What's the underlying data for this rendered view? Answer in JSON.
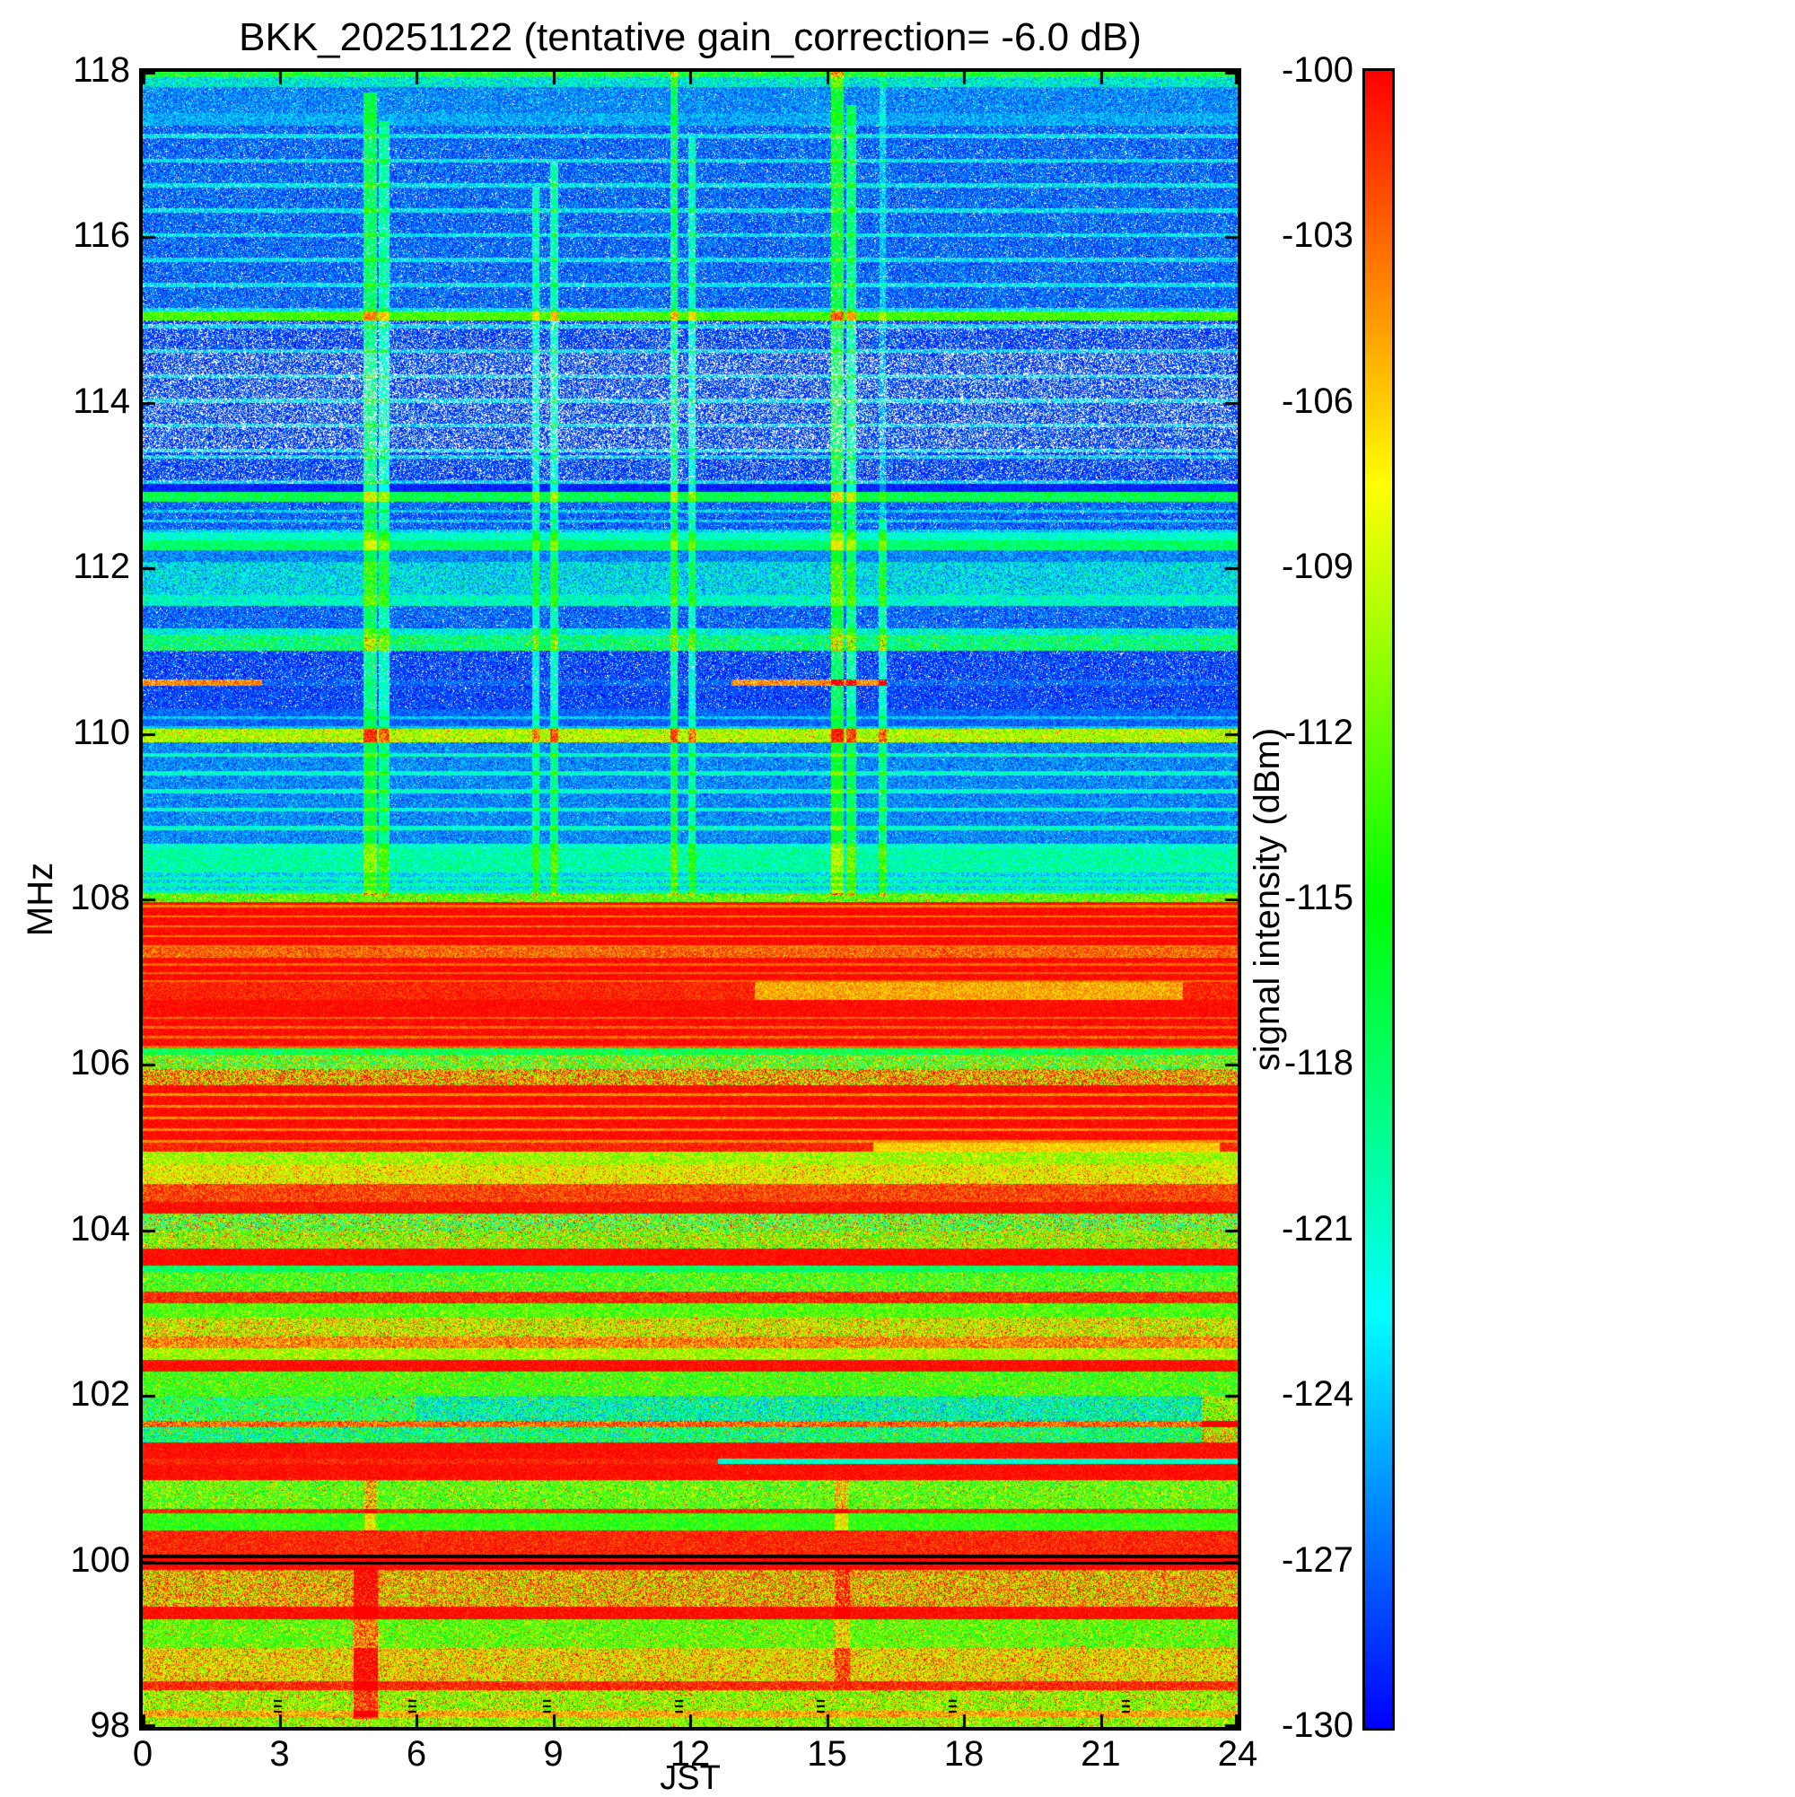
{
  "chart_data": {
    "type": "heatmap",
    "title": "BKK_20251122 (tentative gain_correction= -6.0 dB)",
    "xlabel": "JST",
    "ylabel": "MHz",
    "colorbar_label": "signal intensity (dBm)",
    "x_range": [
      0,
      24
    ],
    "x_ticks": [
      0,
      3,
      6,
      9,
      12,
      15,
      18,
      21,
      24
    ],
    "y_range": [
      98,
      118
    ],
    "y_ticks": [
      98,
      100,
      102,
      104,
      106,
      108,
      110,
      112,
      114,
      116,
      118
    ],
    "colorbar_range": [
      -130,
      -100
    ],
    "colorbar_ticks": [
      -100,
      -103,
      -106,
      -109,
      -112,
      -115,
      -118,
      -121,
      -124,
      -127,
      -130
    ],
    "colormap_stops": [
      "#0000ff",
      "#00ffff",
      "#00ff00",
      "#ffff00",
      "#ff0000"
    ],
    "legend_position": "right-colorbar",
    "grid": false,
    "bands": [
      {
        "f0": 98.0,
        "f1": 98.12,
        "base": -111,
        "noise": 5,
        "spike_p": 0.12,
        "spike_d": 9
      },
      {
        "f0": 98.12,
        "f1": 98.2,
        "base": -105,
        "noise": 4
      },
      {
        "f0": 98.2,
        "f1": 98.45,
        "base": -111,
        "noise": 5,
        "spike_p": 0.15,
        "spike_d": 9
      },
      {
        "f0": 98.45,
        "f1": 98.55,
        "base": -101,
        "noise": 3
      },
      {
        "f0": 98.55,
        "f1": 98.95,
        "base": -108,
        "noise": 5,
        "spike_p": 0.2,
        "spike_d": 7
      },
      {
        "f0": 98.95,
        "f1": 99.3,
        "base": -113,
        "noise": 5,
        "spike_p": 0.12,
        "spike_d": 8
      },
      {
        "f0": 99.3,
        "f1": 99.45,
        "base": -100,
        "noise": 2
      },
      {
        "f0": 99.45,
        "f1": 99.9,
        "base": -107,
        "noise": 7,
        "spike_p": 0.2,
        "spike_d": 7
      },
      {
        "f0": 99.9,
        "f1": 99.96,
        "base": -100,
        "noise": 1.5
      },
      {
        "f0": 99.96,
        "f1": 100.0,
        "color": "black"
      },
      {
        "f0": 100.0,
        "f1": 100.04,
        "base": -100,
        "noise": 1
      },
      {
        "f0": 100.04,
        "f1": 100.08,
        "color": "black"
      },
      {
        "f0": 100.08,
        "f1": 100.38,
        "base": -101,
        "noise": 2.5
      },
      {
        "f0": 100.38,
        "f1": 100.58,
        "base": -114,
        "noise": 4
      },
      {
        "f0": 100.58,
        "f1": 100.64,
        "base": -101,
        "noise": 2
      },
      {
        "f0": 100.64,
        "f1": 100.98,
        "base": -113,
        "noise": 6,
        "spike_p": 0.1,
        "spike_d": 8
      },
      {
        "f0": 100.98,
        "f1": 101.18,
        "base": -100,
        "noise": 2
      },
      {
        "f0": 101.18,
        "f1": 101.24,
        "base": -101,
        "noise": 2,
        "segments": [
          {
            "t0": 12.6,
            "t1": 24,
            "base": -121,
            "noise": 3
          }
        ]
      },
      {
        "f0": 101.24,
        "f1": 101.44,
        "base": -100,
        "noise": 2
      },
      {
        "f0": 101.44,
        "f1": 101.62,
        "base": -119,
        "noise": 7,
        "spike_p": 0.15,
        "spike_d": 10
      },
      {
        "f0": 101.62,
        "f1": 101.7,
        "base": -103,
        "noise": 4
      },
      {
        "f0": 101.7,
        "f1": 102.0,
        "base": -121,
        "noise": 6,
        "spike_p": 0.1,
        "spike_d": 12,
        "segments": [
          {
            "t0": 0,
            "t1": 6,
            "base": -117,
            "noise": 7
          }
        ]
      },
      {
        "f0": 102.0,
        "f1": 102.3,
        "base": -114,
        "noise": 5,
        "spike_p": 0.1,
        "spike_d": 8
      },
      {
        "f0": 102.3,
        "f1": 102.44,
        "base": -100,
        "noise": 2
      },
      {
        "f0": 102.44,
        "f1": 102.58,
        "base": -110,
        "noise": 5
      },
      {
        "f0": 102.58,
        "f1": 102.72,
        "base": -104,
        "noise": 4
      },
      {
        "f0": 102.72,
        "f1": 102.95,
        "base": -109,
        "noise": 6,
        "spike_p": 0.15,
        "spike_d": 7
      },
      {
        "f0": 102.95,
        "f1": 103.12,
        "base": -113,
        "noise": 5
      },
      {
        "f0": 103.12,
        "f1": 103.26,
        "base": -101,
        "noise": 3
      },
      {
        "f0": 103.26,
        "f1": 103.5,
        "base": -114,
        "noise": 6,
        "spike_p": 0.1,
        "spike_d": 8
      },
      {
        "f0": 103.5,
        "f1": 103.58,
        "base": -118,
        "noise": 4
      },
      {
        "f0": 103.58,
        "f1": 103.78,
        "base": -100,
        "noise": 2
      },
      {
        "f0": 103.78,
        "f1": 104.0,
        "base": -111,
        "noise": 8,
        "spike_p": 0.1,
        "spike_d": 8
      },
      {
        "f0": 104.0,
        "f1": 104.2,
        "base": -114,
        "noise": 10,
        "spike_p": 0.15,
        "spike_d": 12
      },
      {
        "f0": 104.2,
        "f1": 104.34,
        "base": -100,
        "noise": 2
      },
      {
        "f0": 104.34,
        "f1": 104.56,
        "base": -102,
        "noise": 3
      },
      {
        "f0": 104.56,
        "f1": 104.8,
        "base": -108,
        "noise": 4,
        "spike_p": 0.1,
        "spike_d": 6
      },
      {
        "f0": 104.8,
        "f1": 104.95,
        "base": -110,
        "noise": 5
      },
      {
        "f0": 104.95,
        "f1": 105.06,
        "base": -101,
        "noise": 2,
        "segments": [
          {
            "t0": 16.0,
            "t1": 23.6,
            "base": -106,
            "noise": 2
          }
        ]
      },
      {
        "f0": 105.06,
        "f1": 105.75,
        "base": -100,
        "noise": 1.8,
        "stripes": {
          "period": 0.14,
          "width": 0.035,
          "delta": -4
        }
      },
      {
        "f0": 105.75,
        "f1": 105.95,
        "base": -106,
        "noise": 8,
        "spike_p": 0.1,
        "spike_d": 8
      },
      {
        "f0": 105.95,
        "f1": 106.12,
        "base": -112,
        "noise": 10
      },
      {
        "f0": 106.12,
        "f1": 106.2,
        "base": -117,
        "noise": 5
      },
      {
        "f0": 106.2,
        "f1": 106.58,
        "base": -100,
        "noise": 2,
        "stripes": {
          "period": 0.12,
          "width": 0.03,
          "delta": -3
        }
      },
      {
        "f0": 106.58,
        "f1": 106.78,
        "base": -100,
        "noise": 1.8
      },
      {
        "f0": 106.78,
        "f1": 107.0,
        "base": -101,
        "noise": 2,
        "segments": [
          {
            "t0": 13.4,
            "t1": 22.8,
            "base": -105,
            "noise": 2.5
          }
        ]
      },
      {
        "f0": 107.0,
        "f1": 107.3,
        "base": -100,
        "noise": 1.6,
        "stripes": {
          "period": 0.1,
          "width": 0.025,
          "delta": -3
        }
      },
      {
        "f0": 107.3,
        "f1": 107.42,
        "base": -103,
        "noise": 3
      },
      {
        "f0": 107.42,
        "f1": 107.97,
        "base": -100,
        "noise": 1.6,
        "stripes": {
          "period": 0.12,
          "width": 0.03,
          "delta": -3.5
        }
      },
      {
        "f0": 107.97,
        "f1": 108.08,
        "base": -113,
        "noise": 5,
        "spike_p": 0.1,
        "spike_d": 8
      },
      {
        "f0": 108.08,
        "f1": 108.32,
        "base": -123,
        "noise": 4,
        "stripes": {
          "period": 0.08,
          "width": 0.03,
          "delta": 3
        }
      },
      {
        "f0": 108.32,
        "f1": 108.62,
        "base": -120,
        "noise": 4
      },
      {
        "f0": 108.62,
        "f1": 109.9,
        "base": -126,
        "noise": 3,
        "white_p": 0.01,
        "stripes": {
          "period": 0.22,
          "width": 0.05,
          "delta": 5
        }
      },
      {
        "f0": 109.9,
        "f1": 110.06,
        "base": -110,
        "noise": 4,
        "spike_p": 0.08,
        "spike_d": 6
      },
      {
        "f0": 110.06,
        "f1": 110.3,
        "base": -127,
        "noise": 2.5,
        "stripes": {
          "period": 0.12,
          "width": 0.03,
          "delta": 3
        }
      },
      {
        "f0": 110.3,
        "f1": 110.58,
        "base": -128,
        "noise": 2.5,
        "white_p": 0.06
      },
      {
        "f0": 110.58,
        "f1": 110.66,
        "base": -127,
        "noise": 2.5,
        "white_p": 0.05,
        "segments": [
          {
            "t0": 0,
            "t1": 2.6,
            "base": -104,
            "noise": 3
          },
          {
            "t0": 12.9,
            "t1": 16.3,
            "base": -104,
            "noise": 3
          }
        ]
      },
      {
        "f0": 110.66,
        "f1": 111.0,
        "base": -128,
        "noise": 3,
        "white_p": 0.08
      },
      {
        "f0": 111.0,
        "f1": 111.2,
        "base": -119,
        "noise": 6,
        "spike_p": 0.08,
        "spike_d": 8
      },
      {
        "f0": 111.2,
        "f1": 111.28,
        "base": -122,
        "noise": 4
      },
      {
        "f0": 111.28,
        "f1": 111.55,
        "base": -127,
        "noise": 3,
        "white_p": 0.05
      },
      {
        "f0": 111.55,
        "f1": 111.68,
        "base": -121,
        "noise": 4
      },
      {
        "f0": 111.68,
        "f1": 112.08,
        "base": -123,
        "noise": 5
      },
      {
        "f0": 112.08,
        "f1": 112.22,
        "base": -126,
        "noise": 3
      },
      {
        "f0": 112.22,
        "f1": 112.34,
        "base": -118,
        "noise": 3
      },
      {
        "f0": 112.34,
        "f1": 112.44,
        "base": -121,
        "noise": 3
      },
      {
        "f0": 112.44,
        "f1": 112.8,
        "base": -127,
        "noise": 3,
        "white_p": 0.04,
        "stripes": {
          "period": 0.12,
          "width": 0.03,
          "delta": 3
        }
      },
      {
        "f0": 112.8,
        "f1": 112.92,
        "base": -117,
        "noise": 4
      },
      {
        "f0": 112.92,
        "f1": 113.02,
        "base": -129,
        "noise": 1.5
      },
      {
        "f0": 113.02,
        "f1": 113.4,
        "base": -128,
        "noise": 2.5,
        "white_p": 0.18,
        "stripes": {
          "period": 0.3,
          "width": 0.05,
          "delta": 4
        }
      },
      {
        "f0": 113.4,
        "f1": 114.6,
        "base": -128,
        "noise": 2.5,
        "white_p": 0.32,
        "stripes": {
          "period": 0.3,
          "width": 0.05,
          "delta": 4
        }
      },
      {
        "f0": 114.6,
        "f1": 115.0,
        "base": -128,
        "noise": 2.5,
        "white_p": 0.2,
        "stripes": {
          "period": 0.3,
          "width": 0.05,
          "delta": 4
        }
      },
      {
        "f0": 115.0,
        "f1": 115.1,
        "base": -113,
        "noise": 3
      },
      {
        "f0": 115.1,
        "f1": 117.35,
        "base": -127,
        "noise": 3,
        "white_p": 0.07,
        "stripes": {
          "period": 0.3,
          "width": 0.05,
          "delta": 4
        }
      },
      {
        "f0": 117.35,
        "f1": 117.5,
        "base": -125,
        "noise": 3
      },
      {
        "f0": 117.5,
        "f1": 117.82,
        "base": -126,
        "noise": 3,
        "white_p": 0.03
      },
      {
        "f0": 117.82,
        "f1": 117.93,
        "base": -122,
        "noise": 5
      },
      {
        "f0": 117.93,
        "f1": 118.0,
        "base": -116,
        "noise": 5,
        "spike_p": 0.1,
        "spike_d": 5
      }
    ],
    "events": [
      {
        "t0": 4.82,
        "t1": 5.12,
        "f0": 108.05,
        "f1": 117.75,
        "delta": 9
      },
      {
        "t0": 5.16,
        "t1": 5.4,
        "f0": 108.05,
        "f1": 117.4,
        "delta": 7
      },
      {
        "t0": 8.52,
        "t1": 8.68,
        "f0": 108.05,
        "f1": 116.6,
        "delta": 6
      },
      {
        "t0": 8.93,
        "t1": 9.1,
        "f0": 108.05,
        "f1": 116.9,
        "delta": 7
      },
      {
        "t0": 11.55,
        "t1": 11.72,
        "f0": 108.05,
        "f1": 118,
        "delta": 8
      },
      {
        "t0": 11.95,
        "t1": 12.1,
        "f0": 108.05,
        "f1": 117.2,
        "delta": 6
      },
      {
        "t0": 15.08,
        "t1": 15.35,
        "f0": 108.05,
        "f1": 118,
        "delta": 10
      },
      {
        "t0": 15.42,
        "t1": 15.62,
        "f0": 108.05,
        "f1": 117.6,
        "delta": 8
      },
      {
        "t0": 16.12,
        "t1": 16.3,
        "f0": 108.05,
        "f1": 112.6,
        "delta": 7
      },
      {
        "t0": 16.15,
        "t1": 16.28,
        "f0": 112.6,
        "f1": 118,
        "delta": 3
      },
      {
        "t0": 4.62,
        "t1": 5.15,
        "f0": 98.1,
        "f1": 99.92,
        "delta": 9
      },
      {
        "t0": 4.85,
        "t1": 5.1,
        "f0": 100.35,
        "f1": 100.98,
        "delta": 7
      },
      {
        "t0": 15.15,
        "t1": 15.45,
        "f0": 100.35,
        "f1": 100.98,
        "delta": 6
      },
      {
        "t0": 15.15,
        "t1": 15.5,
        "f0": 98.55,
        "f1": 99.9,
        "delta": 5
      },
      {
        "t0": 23.2,
        "t1": 24,
        "f0": 101.44,
        "f1": 102.0,
        "delta": 10
      }
    ],
    "bottom_marks": [
      2.95,
      5.9,
      8.85,
      11.75,
      14.85,
      17.75,
      21.55
    ]
  }
}
